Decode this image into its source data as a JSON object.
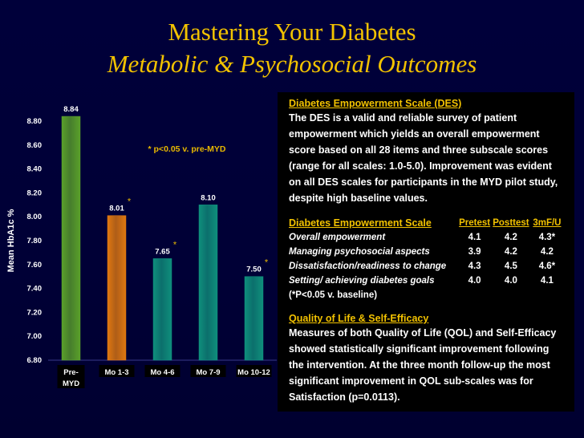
{
  "title": "Mastering Your Diabetes",
  "subtitle": "Metabolic & Psychosocial Outcomes",
  "chart_data": {
    "type": "bar",
    "categories": [
      "Pre-MYD",
      "Mo 1-3",
      "Mo 4-6",
      "Mo 7-9",
      "Mo 10-12"
    ],
    "category_lines": [
      [
        "Pre-",
        "MYD"
      ],
      [
        "Mo 1-3"
      ],
      [
        "Mo 4-6"
      ],
      [
        "Mo 7-9"
      ],
      [
        "Mo 10-12"
      ]
    ],
    "values": [
      8.84,
      8.01,
      7.65,
      8.1,
      7.5
    ],
    "data_labels": [
      "8.84",
      "8.01",
      "7.65",
      "8.10",
      "7.50"
    ],
    "significant": [
      false,
      true,
      true,
      false,
      true
    ],
    "significance_marker": "*",
    "bar_colors": [
      "#5aa02a",
      "#e07810",
      "#0f8f7c",
      "#0f8f7c",
      "#0f8f7c"
    ],
    "ylabel": "Mean HbA1c %",
    "ylim": [
      6.8,
      8.8
    ],
    "yticks": [
      "6.80",
      "7.00",
      "7.20",
      "7.40",
      "7.60",
      "7.80",
      "8.00",
      "8.20",
      "8.40",
      "8.60",
      "8.80"
    ],
    "annotation": "* p<0.05 v. pre-MYD",
    "grid": false
  },
  "des": {
    "heading": "Diabetes Empowerment Scale (DES)",
    "text": "The DES is a valid and reliable survey of patient empowerment which yields an overall empowerment score based on all 28 items and three subscale scores (range for all scales: 1.0-5.0).  Improvement was evident on all DES scales for participants in the MYD pilot study, despite high baseline values."
  },
  "scale_table": {
    "heading": "Diabetes Empowerment Scale",
    "columns": [
      "Pretest",
      "Posttest",
      "3mF/U"
    ],
    "rows": [
      {
        "item": "Overall empowerment",
        "values": [
          "4.1",
          "4.2",
          "4.3*"
        ]
      },
      {
        "item": "Managing psychosocial aspects",
        "values": [
          "3.9",
          "4.2",
          "4.2"
        ]
      },
      {
        "item": "Dissatisfaction/readiness to change",
        "values": [
          "4.3",
          "4.5",
          "4.6*"
        ]
      },
      {
        "item": "Setting/ achieving diabetes goals",
        "values": [
          "4.0",
          "4.0",
          "4.1"
        ]
      }
    ],
    "note": "(*P<0.05 v. baseline)"
  },
  "qol": {
    "heading": "Quality of Life & Self-Efficacy",
    "text": "Measures of both Quality of Life (QOL) and Self-Efficacy showed statistically significant improvement following the intervention.  At the three month follow-up the most significant improvement in QOL sub-scales was for Satisfaction (p=0.0113)."
  },
  "colors": {
    "title": "#f2c200",
    "background": "#000036",
    "axis_text": "#ffffff",
    "annotation": "#e8b800"
  }
}
